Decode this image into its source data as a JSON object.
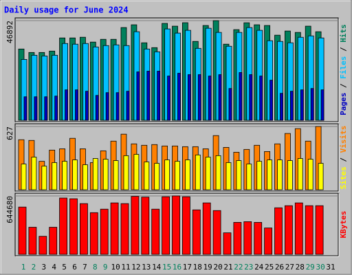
{
  "chart_data": {
    "type": "bar",
    "title": "Daily usage for June 2024",
    "categories": [
      "1",
      "2",
      "3",
      "4",
      "5",
      "6",
      "7",
      "8",
      "9",
      "10",
      "11",
      "12",
      "13",
      "14",
      "15",
      "16",
      "17",
      "18",
      "19",
      "20",
      "21",
      "22",
      "23",
      "24",
      "25",
      "26",
      "27",
      "28",
      "29",
      "30",
      "31"
    ],
    "category_colors": [
      "#00805c",
      "#00805c",
      "#000000",
      "#000000",
      "#000000",
      "#000000",
      "#000000",
      "#00805c",
      "#00805c",
      "#000000",
      "#000000",
      "#000000",
      "#000000",
      "#000000",
      "#00805c",
      "#00805c",
      "#000000",
      "#000000",
      "#000000",
      "#000000",
      "#000000",
      "#00805c",
      "#00805c",
      "#000000",
      "#000000",
      "#000000",
      "#000000",
      "#000000",
      "#00805c",
      "#00805c",
      "#000000"
    ],
    "legend_separator": " / ",
    "panels": [
      {
        "ylim": [
          0,
          46892
        ],
        "yticks": [
          46892
        ],
        "series": [
          {
            "name": "Pages",
            "color": "#0000c0",
            "values": [
              11070,
              11070,
              11070,
              11400,
              14330,
              14330,
              13680,
              11720,
              13020,
              13020,
              13680,
              22790,
              23120,
              23120,
              20840,
              22140,
              21490,
              21490,
              20840,
              21490,
              14980,
              22470,
              21490,
              20840,
              18890,
              12700,
              13680,
              14330,
              14980,
              14330,
              null
            ]
          },
          {
            "name": "Files",
            "color": "#00c0ff",
            "values": [
              28650,
              30610,
              30280,
              30610,
              36140,
              35820,
              36140,
              34510,
              35160,
              35490,
              35160,
              41680,
              33540,
              32230,
              42980,
              41030,
              42330,
              33860,
              43300,
              41350,
              34840,
              41350,
              43630,
              42330,
              37440,
              37120,
              36470,
              39070,
              39720,
              38750,
              null
            ]
          },
          {
            "name": "Hits",
            "color": "#00805c",
            "values": [
              33540,
              31910,
              31910,
              32560,
              38750,
              38750,
              39080,
              36800,
              38100,
              38100,
              43640,
              44940,
              36470,
              34190,
              45590,
              44290,
              45920,
              37120,
              44610,
              46892,
              35820,
              42660,
              45900,
              44940,
              44610,
              40050,
              42000,
              41350,
              44290,
              41680,
              null
            ]
          }
        ]
      },
      {
        "ylim": [
          0,
          627
        ],
        "yticks": [
          627
        ],
        "series": [
          {
            "name": "Sites",
            "color": "#ffff00",
            "values": [
              255,
              324,
              234,
              269,
              282,
              296,
              248,
              310,
              303,
              289,
              338,
              351,
              276,
              262,
              296,
              282,
              296,
              345,
              324,
              338,
              269,
              289,
              255,
              282,
              296,
              296,
              289,
              310,
              303,
              262,
              null
            ]
          },
          {
            "name": "Visits",
            "color": "#ff8000",
            "values": [
              496,
              489,
              282,
              393,
              406,
              510,
              406,
              269,
              386,
              482,
              551,
              455,
              441,
              448,
              434,
              434,
              427,
              427,
              406,
              537,
              420,
              372,
              400,
              441,
              379,
              455,
              558,
              606,
              482,
              627,
              null
            ]
          }
        ]
      },
      {
        "ylim": [
          0,
          644680
        ],
        "yticks": [
          644680
        ],
        "series": [
          {
            "name": "KBytes",
            "color": "#ff0000",
            "values": [
              521900,
              299300,
              199550,
              299300,
              621700,
              614000,
              560300,
              460500,
              498900,
              567950,
              560300,
              640000,
              632000,
              498900,
              636000,
              644680,
              636000,
              491200,
              567950,
              483500,
              237900,
              353000,
              360700,
              353000,
              291600,
              514200,
              537250,
              567950,
              537250,
              537250,
              null
            ]
          }
        ]
      }
    ]
  }
}
